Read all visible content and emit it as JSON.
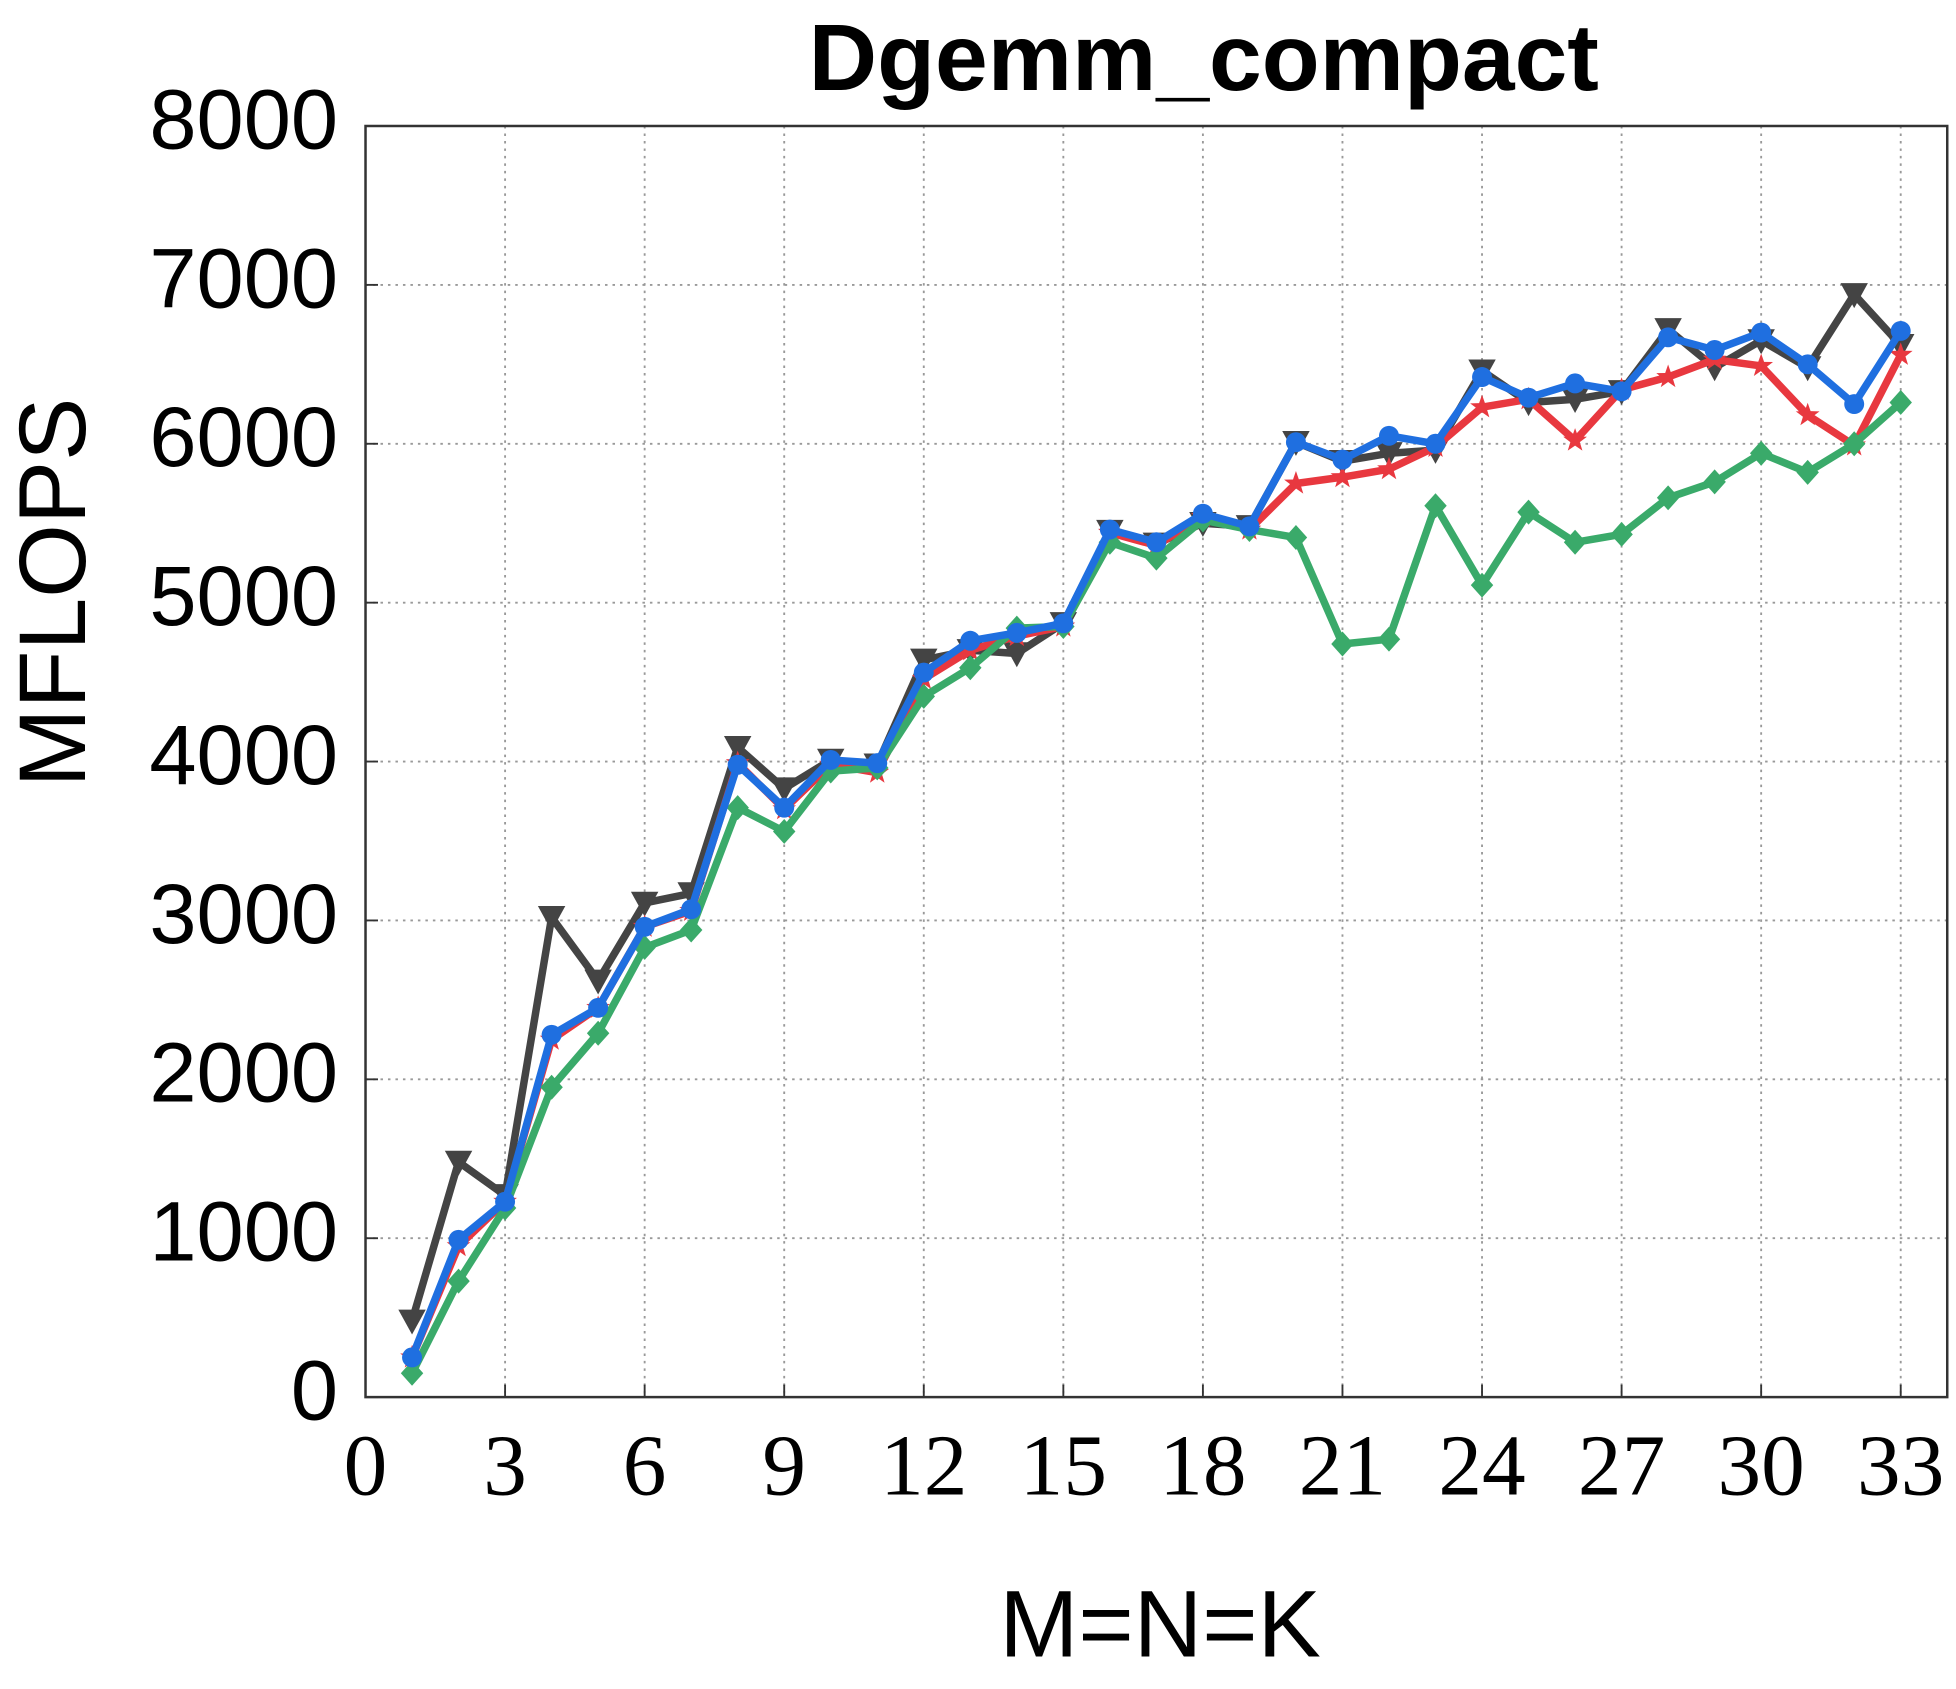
{
  "chart_data": {
    "type": "line",
    "title": "Dgemm_compact",
    "xlabel": "M=N=K",
    "ylabel": "MFLOPS",
    "x": [
      1,
      2,
      3,
      4,
      5,
      6,
      7,
      8,
      9,
      10,
      11,
      12,
      13,
      14,
      15,
      16,
      17,
      18,
      19,
      20,
      21,
      22,
      23,
      24,
      25,
      26,
      27,
      28,
      29,
      30,
      31,
      32,
      33
    ],
    "xlim": [
      0,
      34
    ],
    "xticks": [
      0,
      3,
      6,
      9,
      12,
      15,
      18,
      21,
      24,
      27,
      30,
      33
    ],
    "ylim": [
      0,
      8000
    ],
    "yticks": [
      0,
      1000,
      2000,
      3000,
      4000,
      5000,
      6000,
      7000,
      8000
    ],
    "grid": true,
    "series": [
      {
        "color": "#444444",
        "marker": "triangle-down",
        "values": [
          480,
          1480,
          1270,
          3020,
          2620,
          3110,
          3170,
          4090,
          3830,
          4010,
          3980,
          4640,
          4700,
          4680,
          4870,
          5450,
          5370,
          5500,
          5480,
          6010,
          5890,
          5940,
          5960,
          6460,
          6260,
          6280,
          6330,
          6720,
          6480,
          6650,
          6480,
          6940,
          6620
        ]
      },
      {
        "color": "#e8383f",
        "marker": "star",
        "values": [
          250,
          950,
          1230,
          2250,
          2450,
          2960,
          3060,
          3990,
          3700,
          3980,
          3930,
          4520,
          4700,
          4790,
          4850,
          5440,
          5360,
          5540,
          5460,
          5750,
          5790,
          5840,
          5980,
          6230,
          6280,
          6020,
          6340,
          6420,
          6530,
          6490,
          6180,
          5990,
          6560
        ]
      },
      {
        "color": "#3aaa6a",
        "marker": "diamond",
        "values": [
          150,
          730,
          1190,
          1950,
          2290,
          2830,
          2940,
          3710,
          3560,
          3940,
          3960,
          4410,
          4590,
          4840,
          4850,
          5380,
          5280,
          5520,
          5460,
          5410,
          4740,
          4770,
          5610,
          5110,
          5570,
          5380,
          5430,
          5660,
          5760,
          5940,
          5820,
          6000,
          6260
        ]
      },
      {
        "color": "#1f6fe0",
        "marker": "circle",
        "values": [
          250,
          990,
          1230,
          2280,
          2450,
          2960,
          3070,
          3980,
          3710,
          4010,
          3990,
          4560,
          4760,
          4810,
          4870,
          5460,
          5380,
          5560,
          5480,
          6010,
          5900,
          6050,
          6000,
          6420,
          6290,
          6380,
          6330,
          6670,
          6590,
          6700,
          6500,
          6250,
          6710
        ]
      }
    ]
  }
}
